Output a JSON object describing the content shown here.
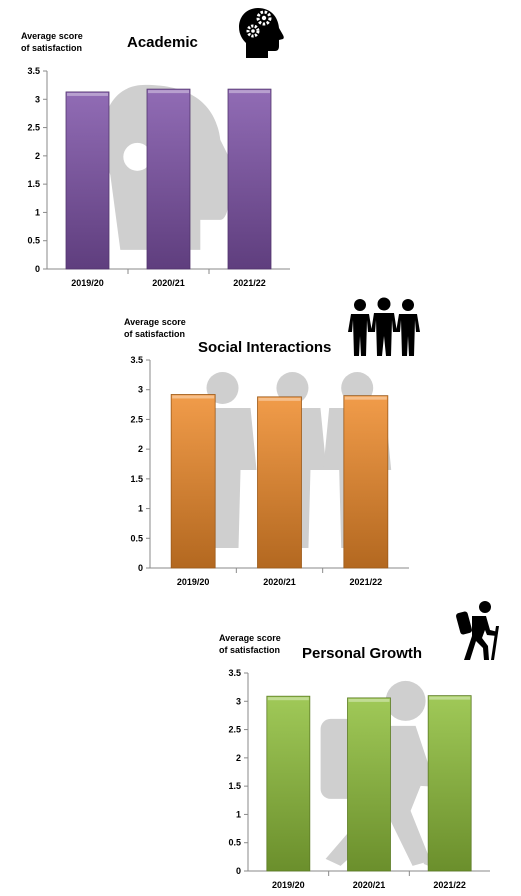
{
  "chart_data": [
    {
      "type": "bar",
      "title": "Academic",
      "ylabel": "Average score\nof satisfaction",
      "xlabel": "",
      "categories": [
        "2019/20",
        "2020/21",
        "2021/22"
      ],
      "values": [
        3.13,
        3.18,
        3.18
      ],
      "ylim": [
        0,
        3.5
      ],
      "yticks": [
        "0",
        "0.5",
        "1",
        "1.5",
        "2",
        "2.5",
        "3",
        "3.5"
      ],
      "grid": false,
      "color": "#7e52a8",
      "icon": "head-gears-icon"
    },
    {
      "type": "bar",
      "title": "Social Interactions",
      "ylabel": "Average score\nof satisfaction",
      "xlabel": "",
      "categories": [
        "2019/20",
        "2020/21",
        "2021/22"
      ],
      "values": [
        2.92,
        2.88,
        2.9
      ],
      "ylim": [
        0,
        3.5
      ],
      "yticks": [
        "0",
        "0.5",
        "1",
        "1.5",
        "2",
        "2.5",
        "3",
        "3.5"
      ],
      "grid": false,
      "color": "#ef8a2a",
      "icon": "group-of-people-icon"
    },
    {
      "type": "bar",
      "title": "Personal Growth",
      "ylabel": "Average score\nof satisfaction",
      "xlabel": "",
      "categories": [
        "2019/20",
        "2020/21",
        "2021/22"
      ],
      "values": [
        3.09,
        3.06,
        3.1
      ],
      "ylim": [
        0,
        3.5
      ],
      "yticks": [
        "0",
        "0.5",
        "1",
        "1.5",
        "2",
        "2.5",
        "3",
        "3.5"
      ],
      "grid": false,
      "color": "#8fbf3a",
      "icon": "hiker-icon"
    }
  ]
}
